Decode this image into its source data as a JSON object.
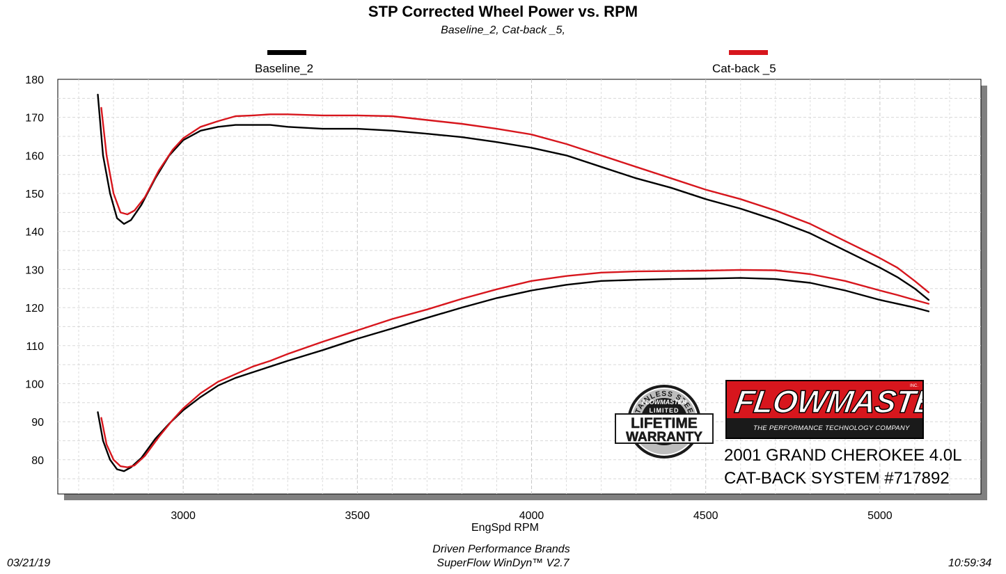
{
  "chart_data": {
    "type": "line",
    "title": "STP Corrected Wheel Power vs. RPM",
    "subtitle": "Baseline_2, Cat-back _5,",
    "xlabel": "EngSpd  RPM",
    "ylabel": "",
    "xlim": [
      2640,
      5290
    ],
    "ylim": [
      71,
      180
    ],
    "xticks": [
      3000,
      3500,
      4000,
      4500,
      5000
    ],
    "yticks": [
      80,
      90,
      100,
      110,
      120,
      130,
      140,
      150,
      160,
      170,
      180
    ],
    "grid": true,
    "legend_position": "top",
    "series": [
      {
        "name": "Baseline_2",
        "color": "#000000",
        "curves": [
          {
            "x": [
              2755,
              2770,
              2790,
              2810,
              2830,
              2850,
              2880,
              2920,
              2960,
              3000,
              3050,
              3100,
              3150,
              3200,
              3250,
              3300,
              3400,
              3500,
              3600,
              3700,
              3800,
              3900,
              4000,
              4100,
              4200,
              4300,
              4400,
              4500,
              4600,
              4700,
              4800,
              4900,
              5000,
              5050,
              5100,
              5140
            ],
            "y": [
              176,
              160,
              150,
              143.5,
              142,
              143,
              147,
              154,
              160,
              164,
              166.5,
              167.5,
              168,
              168,
              168,
              167.5,
              167,
              167,
              166.5,
              165.7,
              164.8,
              163.5,
              162,
              160,
              157,
              154,
              151.5,
              148.5,
              146,
              143,
              139.5,
              135,
              130.5,
              128,
              125,
              122
            ]
          },
          {
            "x": [
              2755,
              2770,
              2790,
              2810,
              2830,
              2850,
              2880,
              2920,
              2960,
              3000,
              3050,
              3100,
              3150,
              3200,
              3250,
              3300,
              3400,
              3500,
              3600,
              3700,
              3800,
              3900,
              4000,
              4100,
              4200,
              4300,
              4400,
              4500,
              4600,
              4700,
              4800,
              4900,
              5000,
              5050,
              5100,
              5140
            ],
            "y": [
              92.5,
              85,
              80,
              77.5,
              77,
              78,
              80.5,
              85.5,
              89.5,
              93,
              96.5,
              99.5,
              101.5,
              103,
              104.5,
              106,
              108.8,
              111.8,
              114.5,
              117.3,
              120,
              122.5,
              124.5,
              126,
              127,
              127.3,
              127.5,
              127.6,
              127.8,
              127.5,
              126.5,
              124.5,
              122,
              121,
              120,
              119
            ]
          }
        ]
      },
      {
        "name": "Cat-back _5",
        "color": "#d7161d",
        "curves": [
          {
            "x": [
              2765,
              2780,
              2800,
              2820,
              2840,
              2860,
              2890,
              2930,
              2970,
              3000,
              3050,
              3100,
              3150,
              3200,
              3250,
              3300,
              3400,
              3500,
              3600,
              3700,
              3800,
              3900,
              4000,
              4100,
              4200,
              4300,
              4400,
              4500,
              4600,
              4700,
              4800,
              4900,
              5000,
              5050,
              5100,
              5140
            ],
            "y": [
              172.5,
              160,
              150,
              145,
              144.5,
              145.5,
              149,
              156,
              161.5,
              164.5,
              167.5,
              169,
              170.3,
              170.5,
              170.8,
              170.8,
              170.5,
              170.5,
              170.3,
              169.3,
              168.3,
              167,
              165.5,
              163,
              160,
              157,
              154,
              151,
              148.5,
              145.5,
              142,
              137.5,
              133,
              130.5,
              127,
              124
            ]
          },
          {
            "x": [
              2765,
              2780,
              2800,
              2820,
              2840,
              2860,
              2890,
              2930,
              2970,
              3000,
              3050,
              3100,
              3150,
              3200,
              3250,
              3300,
              3400,
              3500,
              3600,
              3700,
              3800,
              3900,
              4000,
              4100,
              4200,
              4300,
              4400,
              4500,
              4600,
              4700,
              4800,
              4900,
              5000,
              5050,
              5100,
              5140
            ],
            "y": [
              91,
              84,
              80,
              78.3,
              78,
              78.5,
              81,
              86,
              90.5,
              93.5,
              97.5,
              100.5,
              102.5,
              104.5,
              106,
              107.8,
              111,
              114,
              117,
              119.5,
              122.3,
              124.8,
              127,
              128.3,
              129.2,
              129.5,
              129.6,
              129.7,
              129.9,
              129.8,
              128.8,
              127,
              124.5,
              123.3,
              122,
              121
            ]
          }
        ]
      }
    ]
  },
  "footer": {
    "date": "03/21/19",
    "company": "Driven Performance Brands",
    "software": "SuperFlow WinDyn™  V2.7",
    "time": "10:59:34"
  },
  "branding": {
    "logo_text": "FLOWMASTER",
    "logo_inc": "INC.",
    "tagline": "THE PERFORMANCE TECHNOLOGY COMPANY",
    "vehicle_line1": "2001 GRAND CHEROKEE 4.0L",
    "vehicle_line2": "CAT-BACK SYSTEM #717892",
    "warranty_top": "STAINLESS STEEL",
    "warranty_brand": "FLOWMASTER",
    "warranty_limited": "LIMITED",
    "warranty_line1": "LIFETIME",
    "warranty_line2": "WARRANTY",
    "brand_red": "#d7161d"
  }
}
